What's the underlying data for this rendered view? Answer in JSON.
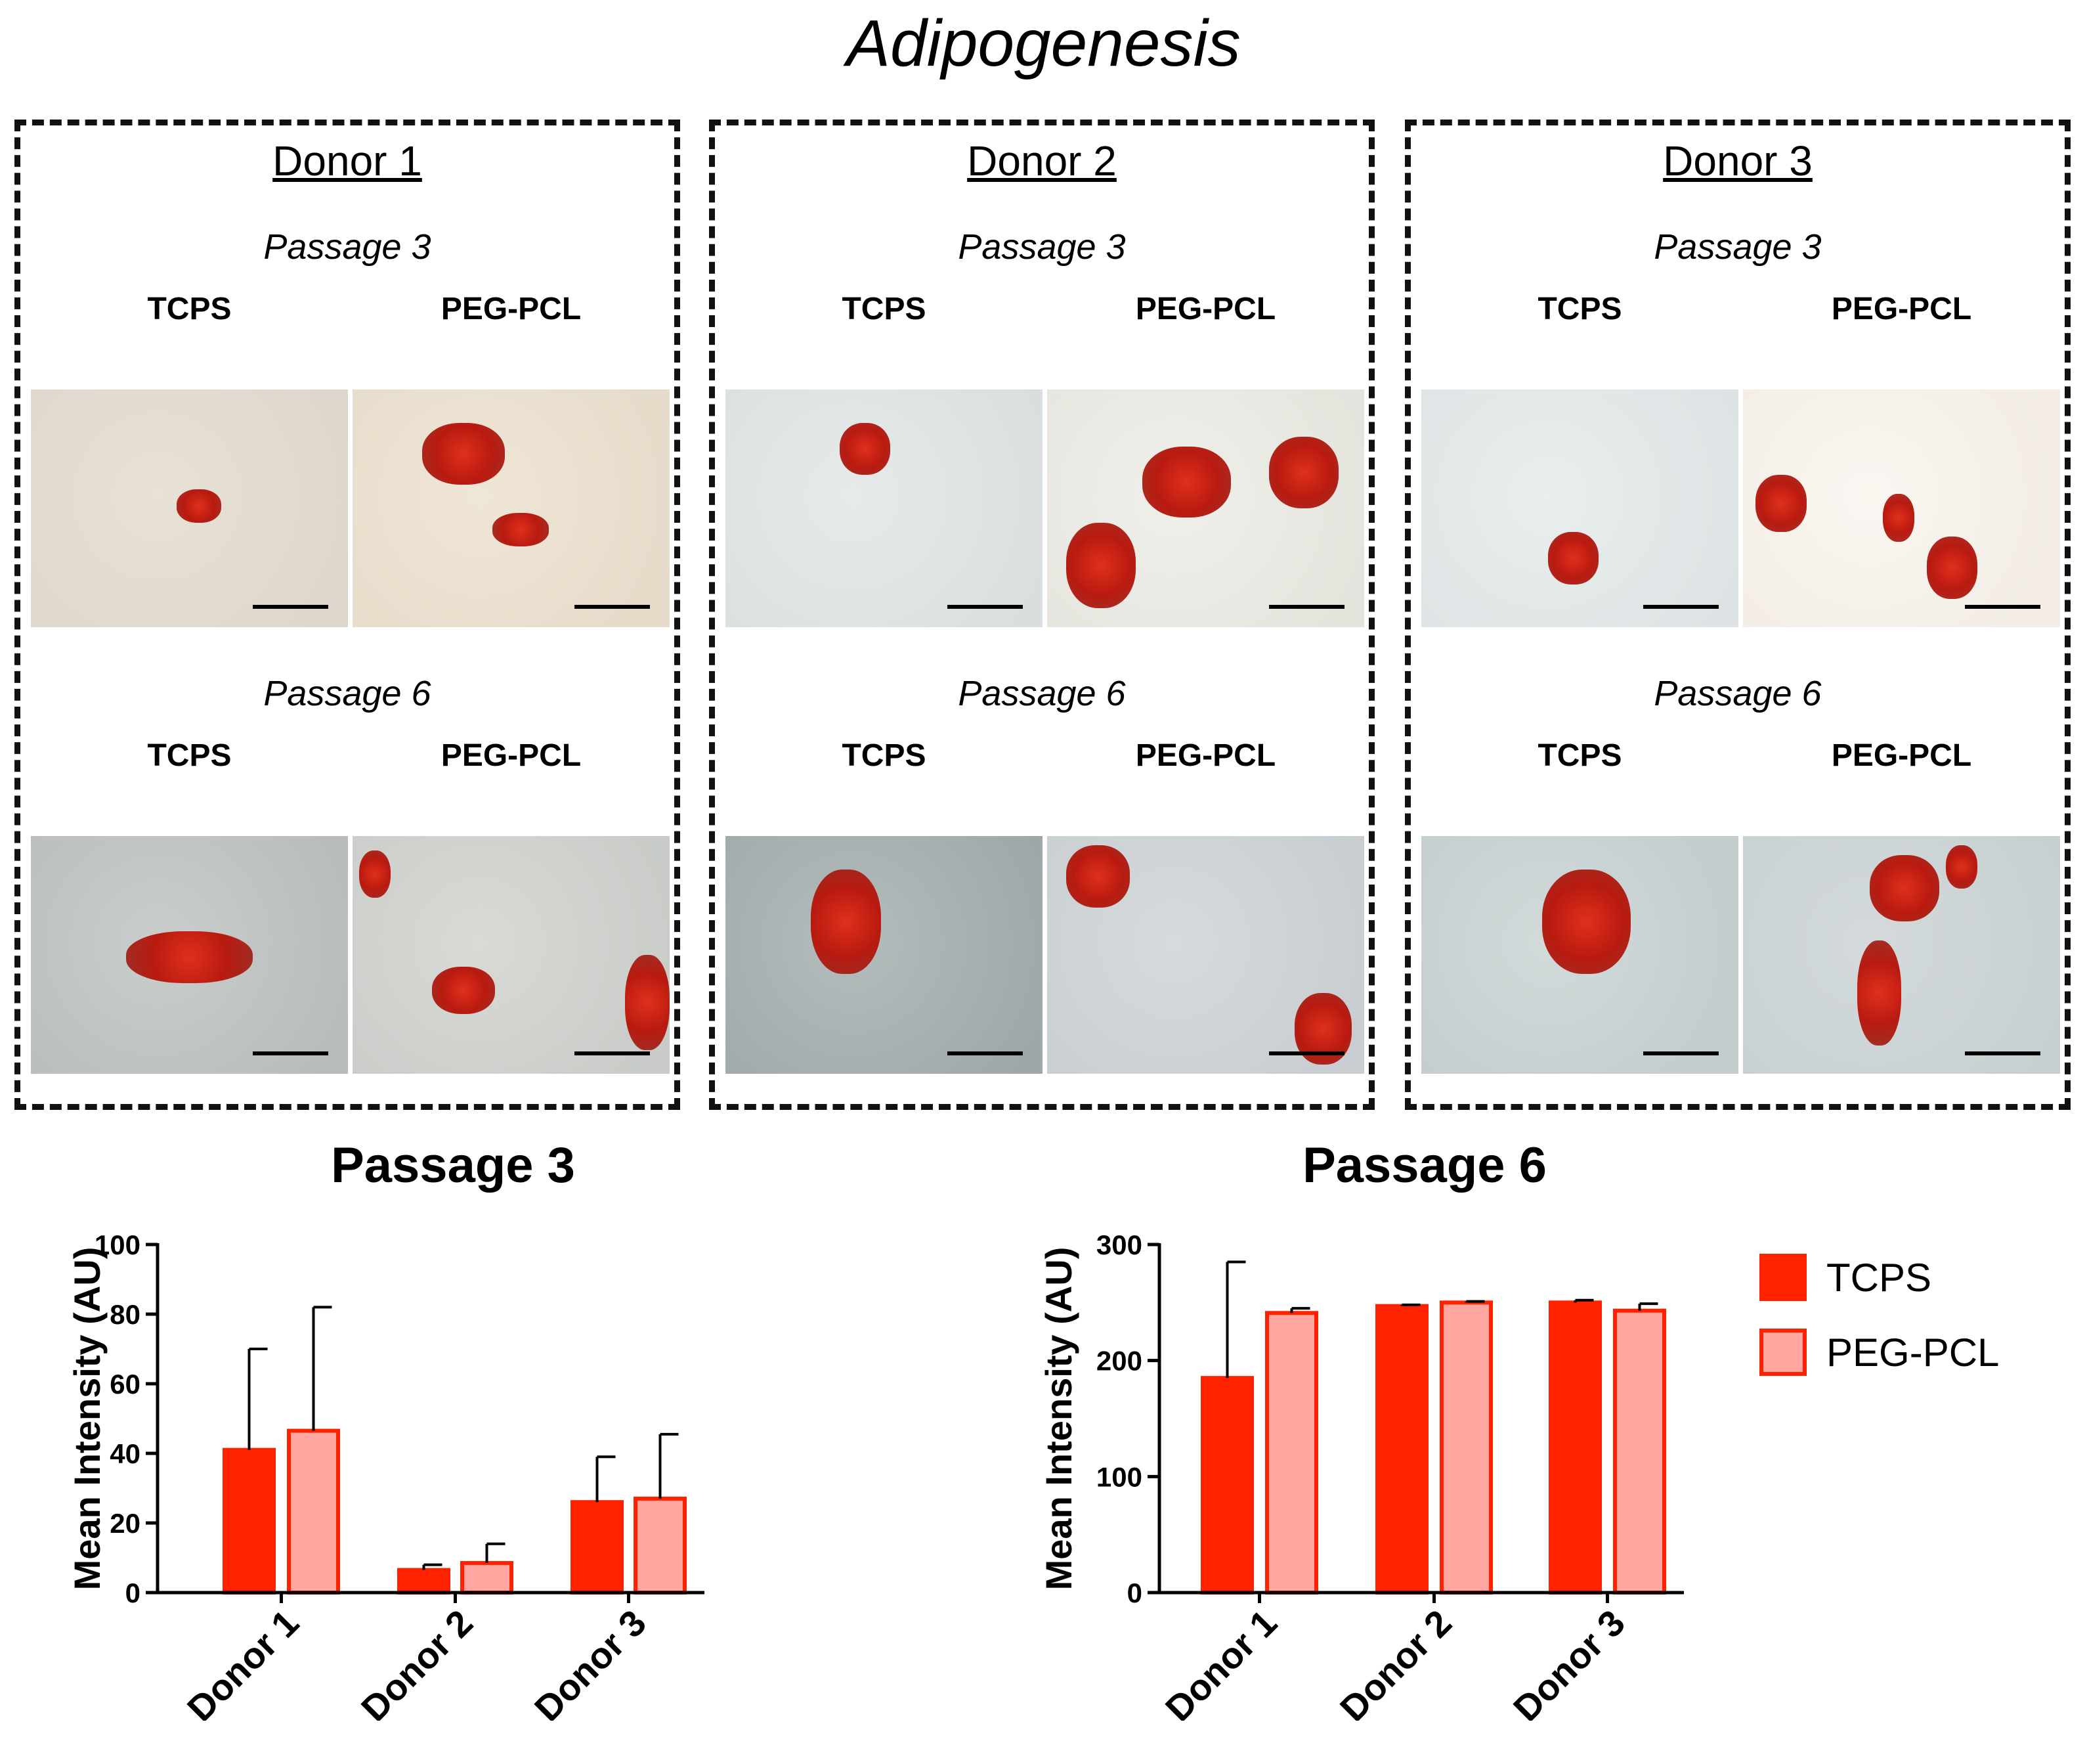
{
  "title": "Adipogenesis",
  "colors": {
    "tcps": "#ff2200",
    "pegpcl": "#ffa6a0",
    "pegpcl_edge": "#ff2200",
    "axis": "#000000"
  },
  "donors": [
    {
      "title": "Donor 1",
      "passages": [
        {
          "label": "Passage 3",
          "conditions": [
            "TCPS",
            "PEG-PCL"
          ],
          "image_descriptions": [
            "red-stained-adipocyte-cluster",
            "red-stained-adipocyte-cluster"
          ]
        },
        {
          "label": "Passage 6",
          "conditions": [
            "TCPS",
            "PEG-PCL"
          ],
          "image_descriptions": [
            "red-stained-adipocyte-cluster",
            "red-stained-adipocyte-cluster"
          ]
        }
      ]
    },
    {
      "title": "Donor 2",
      "passages": [
        {
          "label": "Passage 3",
          "conditions": [
            "TCPS",
            "PEG-PCL"
          ],
          "image_descriptions": [
            "red-stained-adipocyte-cluster",
            "red-stained-adipocyte-cluster"
          ]
        },
        {
          "label": "Passage 6",
          "conditions": [
            "TCPS",
            "PEG-PCL"
          ],
          "image_descriptions": [
            "red-stained-adipocyte-cluster",
            "red-stained-adipocyte-cluster"
          ]
        }
      ]
    },
    {
      "title": "Donor 3",
      "passages": [
        {
          "label": "Passage 3",
          "conditions": [
            "TCPS",
            "PEG-PCL"
          ],
          "image_descriptions": [
            "red-stained-adipocyte-cluster",
            "red-stained-adipocyte-cluster"
          ]
        },
        {
          "label": "Passage 6",
          "conditions": [
            "TCPS",
            "PEG-PCL"
          ],
          "image_descriptions": [
            "red-stained-adipocyte-cluster",
            "red-stained-adipocyte-cluster"
          ]
        }
      ]
    }
  ],
  "legend": [
    {
      "label": "TCPS",
      "color_key": "tcps"
    },
    {
      "label": "PEG-PCL",
      "color_key": "pegpcl"
    }
  ],
  "chart_data": [
    {
      "type": "bar",
      "title": "Passage 3",
      "ylabel": "Mean Intensity (AU)",
      "xlabel": "",
      "categories": [
        "Donor 1",
        "Donor 2",
        "Donor 3"
      ],
      "ylim": [
        0,
        100
      ],
      "yticks": [
        0,
        20,
        40,
        60,
        80,
        100
      ],
      "series": [
        {
          "name": "TCPS",
          "values": [
            41,
            6.5,
            26
          ],
          "errors": [
            29,
            1.5,
            13
          ]
        },
        {
          "name": "PEG-PCL",
          "values": [
            46.5,
            8.5,
            27
          ],
          "errors": [
            35.5,
            5.5,
            18.5
          ]
        }
      ]
    },
    {
      "type": "bar",
      "title": "Passage 6",
      "ylabel": "Mean Intensity (AU)",
      "xlabel": "",
      "categories": [
        "Donor 1",
        "Donor 2",
        "Donor 3"
      ],
      "ylim": [
        0,
        300
      ],
      "yticks": [
        0,
        100,
        200,
        300
      ],
      "series": [
        {
          "name": "TCPS",
          "values": [
            185,
            247,
            250
          ],
          "errors": [
            100,
            1,
            2
          ]
        },
        {
          "name": "PEG-PCL",
          "values": [
            241,
            250,
            243
          ],
          "errors": [
            4,
            1,
            6
          ]
        }
      ]
    }
  ]
}
